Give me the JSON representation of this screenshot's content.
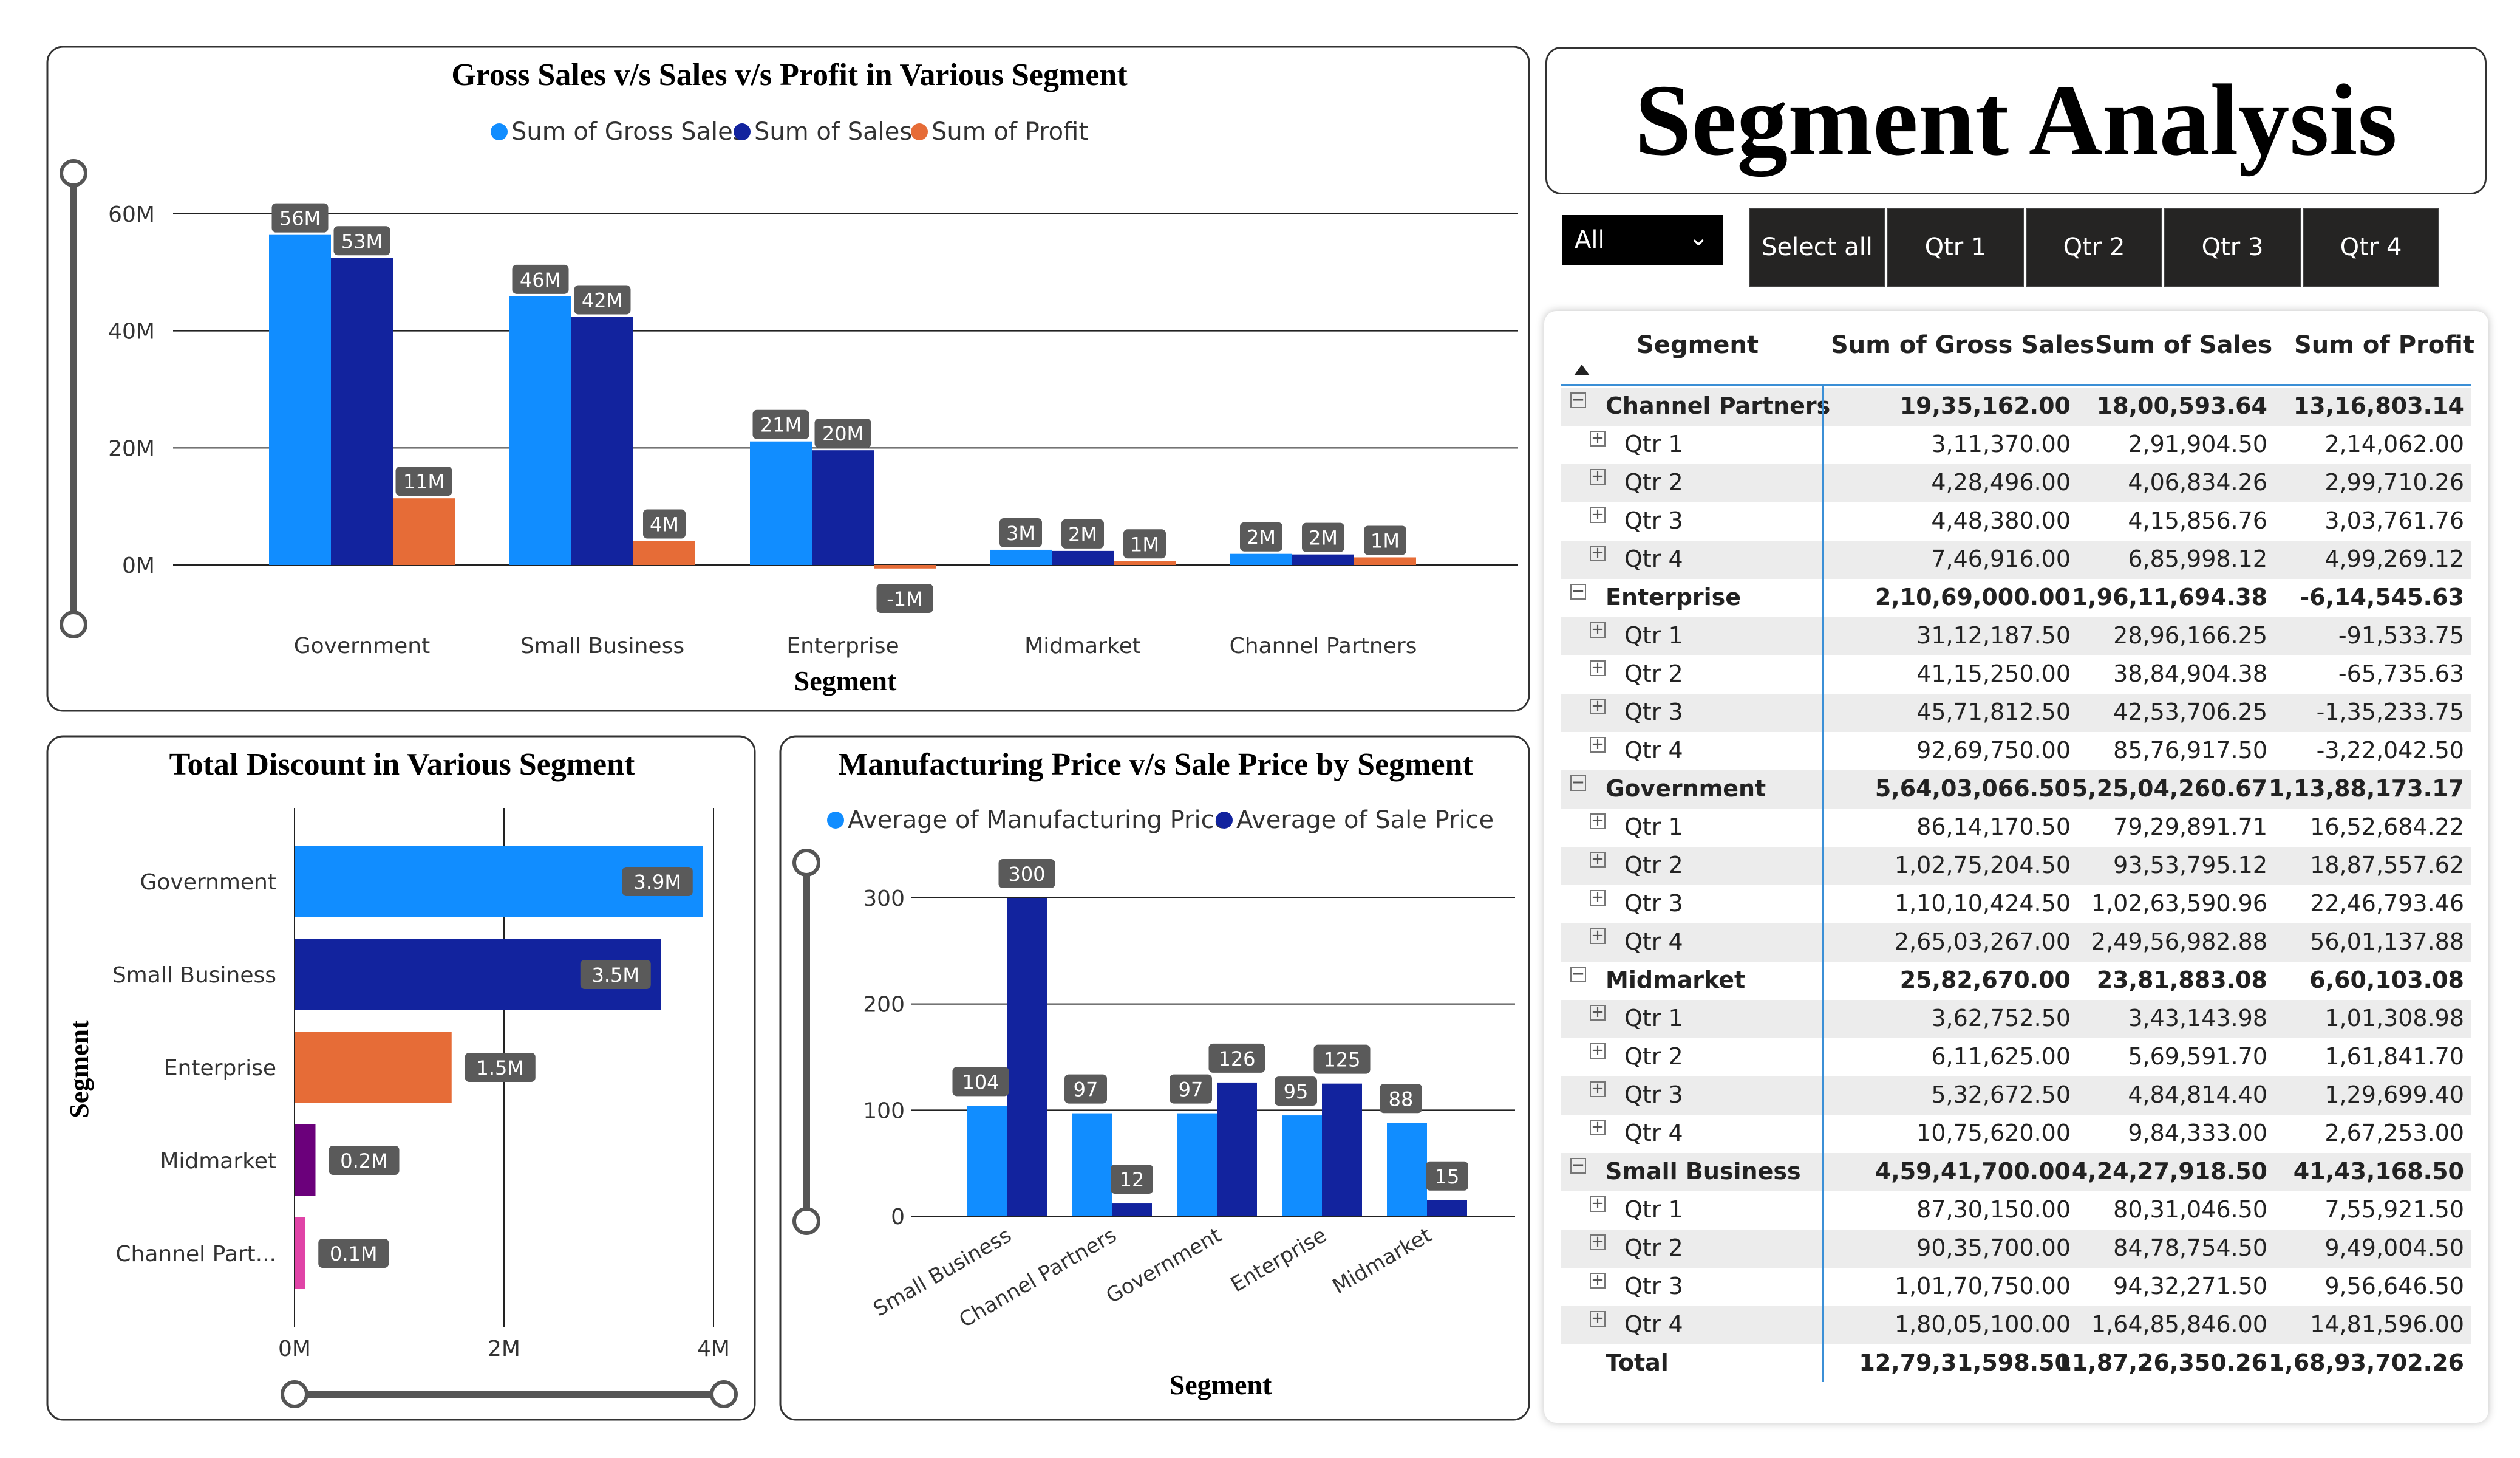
{
  "page_title": "Segment Analysis",
  "filters": {
    "dropdown_value": "All",
    "buttons": [
      "Select all",
      "Qtr 1",
      "Qtr 2",
      "Qtr 3",
      "Qtr 4"
    ]
  },
  "colors": {
    "gross_sales": "#118dff",
    "sales": "#12239e",
    "profit": "#e66c37",
    "midmarket_bar": "#6b007b",
    "channel_bar": "#e044a7",
    "label_bg": "#5a5a5a",
    "table_accent": "#3b8fd6"
  },
  "chart_data": [
    {
      "type": "bar",
      "title": "Gross Sales v/s Sales v/s Profit in Various Segment",
      "xlabel": "Segment",
      "ylabel": "",
      "categories": [
        "Government",
        "Small Business",
        "Enterprise",
        "Midmarket",
        "Channel Partners"
      ],
      "series": [
        {
          "name": "Sum of Gross Sales",
          "values": [
            56.4,
            45.9,
            21.1,
            2.6,
            1.9
          ],
          "labels": [
            "56M",
            "46M",
            "21M",
            "3M",
            "2M"
          ]
        },
        {
          "name": "Sum of Sales",
          "values": [
            52.5,
            42.4,
            19.6,
            2.4,
            1.8
          ],
          "labels": [
            "53M",
            "42M",
            "20M",
            "2M",
            "2M"
          ]
        },
        {
          "name": "Sum of Profit",
          "values": [
            11.4,
            4.1,
            -0.6,
            0.7,
            1.3
          ],
          "labels": [
            "11M",
            "4M",
            "-1M",
            "1M",
            "1M"
          ]
        }
      ],
      "yticks": [
        "0M",
        "20M",
        "40M",
        "60M"
      ],
      "ylim": [
        -6,
        66
      ],
      "legend": "top"
    },
    {
      "type": "bar",
      "orientation": "horizontal",
      "title": "Total Discount in Various Segment",
      "xlabel": "",
      "ylabel": "Segment",
      "categories": [
        "Government",
        "Small Business",
        "Enterprise",
        "Midmarket",
        "Channel Part..."
      ],
      "values": [
        3.9,
        3.5,
        1.5,
        0.2,
        0.1
      ],
      "labels": [
        "3.9M",
        "3.5M",
        "1.5M",
        "0.2M",
        "0.1M"
      ],
      "xticks": [
        "0M",
        "2M",
        "4M"
      ],
      "xlim": [
        0,
        4
      ]
    },
    {
      "type": "bar",
      "title": "Manufacturing Price v/s Sale Price by Segment",
      "xlabel": "Segment",
      "ylabel": "",
      "categories": [
        "Small Business",
        "Channel Partners",
        "Government",
        "Enterprise",
        "Midmarket"
      ],
      "series": [
        {
          "name": "Average of Manufacturing Price",
          "values": [
            104,
            97,
            97,
            95,
            88
          ]
        },
        {
          "name": "Average of Sale Price",
          "values": [
            300,
            12,
            126,
            125,
            15
          ]
        }
      ],
      "yticks": [
        "0",
        "100",
        "200",
        "300"
      ],
      "ylim": [
        0,
        300
      ],
      "legend": "top"
    }
  ],
  "table": {
    "headers": [
      "Segment",
      "Sum of Gross Sales",
      "Sum of Sales",
      "Sum of Profit"
    ],
    "groups": [
      {
        "name": "Channel Partners",
        "gross": "19,35,162.00",
        "sales": "18,00,593.64",
        "profit": "13,16,803.14",
        "rows": [
          {
            "q": "Qtr 1",
            "gross": "3,11,370.00",
            "sales": "2,91,904.50",
            "profit": "2,14,062.00"
          },
          {
            "q": "Qtr 2",
            "gross": "4,28,496.00",
            "sales": "4,06,834.26",
            "profit": "2,99,710.26"
          },
          {
            "q": "Qtr 3",
            "gross": "4,48,380.00",
            "sales": "4,15,856.76",
            "profit": "3,03,761.76"
          },
          {
            "q": "Qtr 4",
            "gross": "7,46,916.00",
            "sales": "6,85,998.12",
            "profit": "4,99,269.12"
          }
        ]
      },
      {
        "name": "Enterprise",
        "gross": "2,10,69,000.00",
        "sales": "1,96,11,694.38",
        "profit": "-6,14,545.63",
        "rows": [
          {
            "q": "Qtr 1",
            "gross": "31,12,187.50",
            "sales": "28,96,166.25",
            "profit": "-91,533.75"
          },
          {
            "q": "Qtr 2",
            "gross": "41,15,250.00",
            "sales": "38,84,904.38",
            "profit": "-65,735.63"
          },
          {
            "q": "Qtr 3",
            "gross": "45,71,812.50",
            "sales": "42,53,706.25",
            "profit": "-1,35,233.75"
          },
          {
            "q": "Qtr 4",
            "gross": "92,69,750.00",
            "sales": "85,76,917.50",
            "profit": "-3,22,042.50"
          }
        ]
      },
      {
        "name": "Government",
        "gross": "5,64,03,066.50",
        "sales": "5,25,04,260.67",
        "profit": "1,13,88,173.17",
        "rows": [
          {
            "q": "Qtr 1",
            "gross": "86,14,170.50",
            "sales": "79,29,891.71",
            "profit": "16,52,684.22"
          },
          {
            "q": "Qtr 2",
            "gross": "1,02,75,204.50",
            "sales": "93,53,795.12",
            "profit": "18,87,557.62"
          },
          {
            "q": "Qtr 3",
            "gross": "1,10,10,424.50",
            "sales": "1,02,63,590.96",
            "profit": "22,46,793.46"
          },
          {
            "q": "Qtr 4",
            "gross": "2,65,03,267.00",
            "sales": "2,49,56,982.88",
            "profit": "56,01,137.88"
          }
        ]
      },
      {
        "name": "Midmarket",
        "gross": "25,82,670.00",
        "sales": "23,81,883.08",
        "profit": "6,60,103.08",
        "rows": [
          {
            "q": "Qtr 1",
            "gross": "3,62,752.50",
            "sales": "3,43,143.98",
            "profit": "1,01,308.98"
          },
          {
            "q": "Qtr 2",
            "gross": "6,11,625.00",
            "sales": "5,69,591.70",
            "profit": "1,61,841.70"
          },
          {
            "q": "Qtr 3",
            "gross": "5,32,672.50",
            "sales": "4,84,814.40",
            "profit": "1,29,699.40"
          },
          {
            "q": "Qtr 4",
            "gross": "10,75,620.00",
            "sales": "9,84,333.00",
            "profit": "2,67,253.00"
          }
        ]
      },
      {
        "name": "Small Business",
        "gross": "4,59,41,700.00",
        "sales": "4,24,27,918.50",
        "profit": "41,43,168.50",
        "rows": [
          {
            "q": "Qtr 1",
            "gross": "87,30,150.00",
            "sales": "80,31,046.50",
            "profit": "7,55,921.50"
          },
          {
            "q": "Qtr 2",
            "gross": "90,35,700.00",
            "sales": "84,78,754.50",
            "profit": "9,49,004.50"
          },
          {
            "q": "Qtr 3",
            "gross": "1,01,70,750.00",
            "sales": "94,32,271.50",
            "profit": "9,56,646.50"
          },
          {
            "q": "Qtr 4",
            "gross": "1,80,05,100.00",
            "sales": "1,64,85,846.00",
            "profit": "14,81,596.00"
          }
        ]
      }
    ],
    "total": {
      "label": "Total",
      "gross": "12,79,31,598.50",
      "sales": "11,87,26,350.26",
      "profit": "1,68,93,702.26"
    }
  }
}
